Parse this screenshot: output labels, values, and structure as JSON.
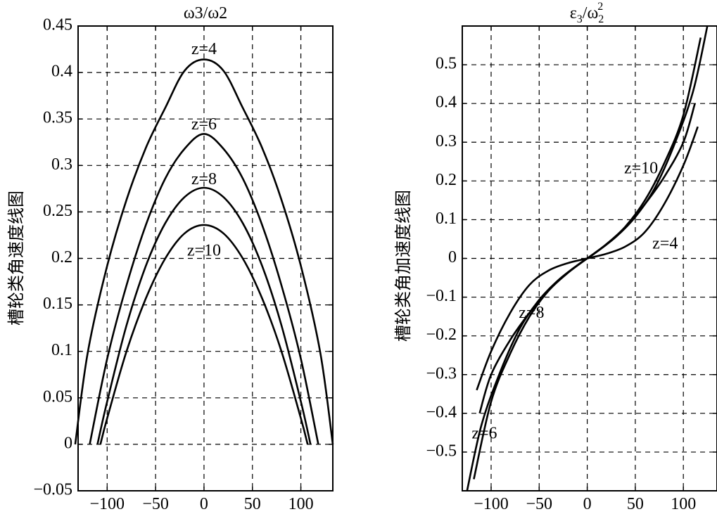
{
  "chart_data": [
    {
      "type": "line",
      "title": "ω3/ω2",
      "ylabel": "槽轮类角速度线图",
      "xlim": [
        -130,
        133
      ],
      "ylim": [
        -0.05,
        0.45
      ],
      "xticks": [
        -100,
        -50,
        0,
        50,
        100
      ],
      "xtick_labels": [
        "−100",
        "−50",
        "0",
        "50",
        "100"
      ],
      "yticks": [
        -0.05,
        0,
        0.05,
        0.1,
        0.15,
        0.2,
        0.25,
        0.3,
        0.35,
        0.4,
        0.45
      ],
      "ytick_labels": [
        "−0.05",
        "0",
        "0.05",
        "0.1",
        "0.15",
        "0.2",
        "0.25",
        "0.3",
        "0.35",
        "0.4",
        "0.45"
      ],
      "grid": true,
      "series": [
        {
          "name": "z=4",
          "x": [
            -133,
            -120,
            -100,
            -80,
            -60,
            -40,
            -20,
            0,
            20,
            40,
            60,
            80,
            100,
            120,
            133
          ],
          "y": [
            0,
            0.099,
            0.192,
            0.263,
            0.319,
            0.362,
            0.402,
            0.414,
            0.402,
            0.362,
            0.319,
            0.263,
            0.192,
            0.099,
            0
          ]
        },
        {
          "name": "z=6",
          "x": [
            -118,
            -100,
            -80,
            -60,
            -40,
            -20,
            0,
            20,
            40,
            60,
            80,
            100,
            118
          ],
          "y": [
            0,
            0.092,
            0.171,
            0.236,
            0.286,
            0.318,
            0.334,
            0.318,
            0.286,
            0.236,
            0.171,
            0.092,
            0
          ]
        },
        {
          "name": "z=8",
          "x": [
            -110,
            -100,
            -80,
            -60,
            -40,
            -20,
            0,
            20,
            40,
            60,
            80,
            100,
            110
          ],
          "y": [
            0,
            0.046,
            0.128,
            0.192,
            0.238,
            0.266,
            0.276,
            0.266,
            0.238,
            0.192,
            0.128,
            0.046,
            0
          ]
        },
        {
          "name": "z=10",
          "x": [
            -107,
            -100,
            -80,
            -60,
            -40,
            -20,
            0,
            20,
            40,
            60,
            80,
            100,
            107
          ],
          "y": [
            0,
            0.028,
            0.1,
            0.157,
            0.2,
            0.227,
            0.236,
            0.227,
            0.2,
            0.157,
            0.1,
            0.028,
            0
          ]
        }
      ],
      "annotations": [
        {
          "text": "z=4",
          "x": 0,
          "y": 0.424
        },
        {
          "text": "z=6",
          "x": 0,
          "y": 0.343
        },
        {
          "text": "z=8",
          "x": 0,
          "y": 0.284
        },
        {
          "text": "z=10",
          "x": 0,
          "y": 0.207
        }
      ]
    },
    {
      "type": "line",
      "title": "ε3/ω2²",
      "title_main": "ε",
      "title_main_sub": "3",
      "title_den": "/ω",
      "title_den_sub": "2",
      "title_den_sup": "2",
      "ylabel": "槽轮类角加速度线图",
      "xlim": [
        -130,
        135
      ],
      "ylim": [
        -0.6,
        0.6
      ],
      "xticks": [
        -100,
        -50,
        0,
        50,
        100
      ],
      "xtick_labels": [
        "−100",
        "−50",
        "0",
        "50",
        "100"
      ],
      "yticks": [
        -0.5,
        -0.4,
        -0.3,
        -0.2,
        -0.1,
        0,
        0.1,
        0.2,
        0.3,
        0.4,
        0.5
      ],
      "ytick_labels": [
        "−0.5",
        "−0.4",
        "−0.3",
        "−0.2",
        "−0.1",
        "0",
        "0.1",
        "0.2",
        "0.3",
        "0.4",
        "0.5"
      ],
      "grid": true,
      "series": [
        {
          "name": "z=4",
          "x": [
            -115,
            -100,
            -80,
            -60,
            -40,
            -20,
            0,
            20,
            40,
            60,
            80,
            100,
            115
          ],
          "y": [
            -0.34,
            -0.24,
            -0.14,
            -0.068,
            -0.031,
            -0.012,
            0,
            0.012,
            0.031,
            0.068,
            0.14,
            0.24,
            0.34
          ]
        },
        {
          "name": "z=6",
          "x": [
            -125,
            -110,
            -90,
            -70,
            -50,
            -30,
            -10,
            0,
            10,
            30,
            50,
            70,
            90,
            110,
            125
          ],
          "y": [
            -0.6,
            -0.43,
            -0.29,
            -0.18,
            -0.107,
            -0.056,
            -0.017,
            0,
            0.017,
            0.056,
            0.107,
            0.18,
            0.29,
            0.43,
            0.6
          ]
        },
        {
          "name": "z=8",
          "x": [
            -118,
            -100,
            -80,
            -60,
            -40,
            -20,
            0,
            20,
            40,
            60,
            80,
            100,
            118
          ],
          "y": [
            -0.57,
            -0.37,
            -0.245,
            -0.15,
            -0.083,
            -0.037,
            0,
            0.037,
            0.083,
            0.15,
            0.245,
            0.37,
            0.57
          ]
        },
        {
          "name": "z=10",
          "x": [
            -112,
            -100,
            -80,
            -60,
            -40,
            -20,
            0,
            20,
            40,
            60,
            80,
            100,
            112
          ],
          "y": [
            -0.4,
            -0.3,
            -0.21,
            -0.14,
            -0.08,
            -0.036,
            0,
            0.036,
            0.08,
            0.14,
            0.21,
            0.3,
            0.4
          ]
        }
      ],
      "annotations": [
        {
          "text": "z=10",
          "x": 56,
          "y": 0.23
        },
        {
          "text": "z=4",
          "x": 81,
          "y": 0.035
        },
        {
          "text": "z=8",
          "x": -58,
          "y": -0.143
        },
        {
          "text": "z=6",
          "x": -107,
          "y": -0.455
        }
      ]
    }
  ]
}
